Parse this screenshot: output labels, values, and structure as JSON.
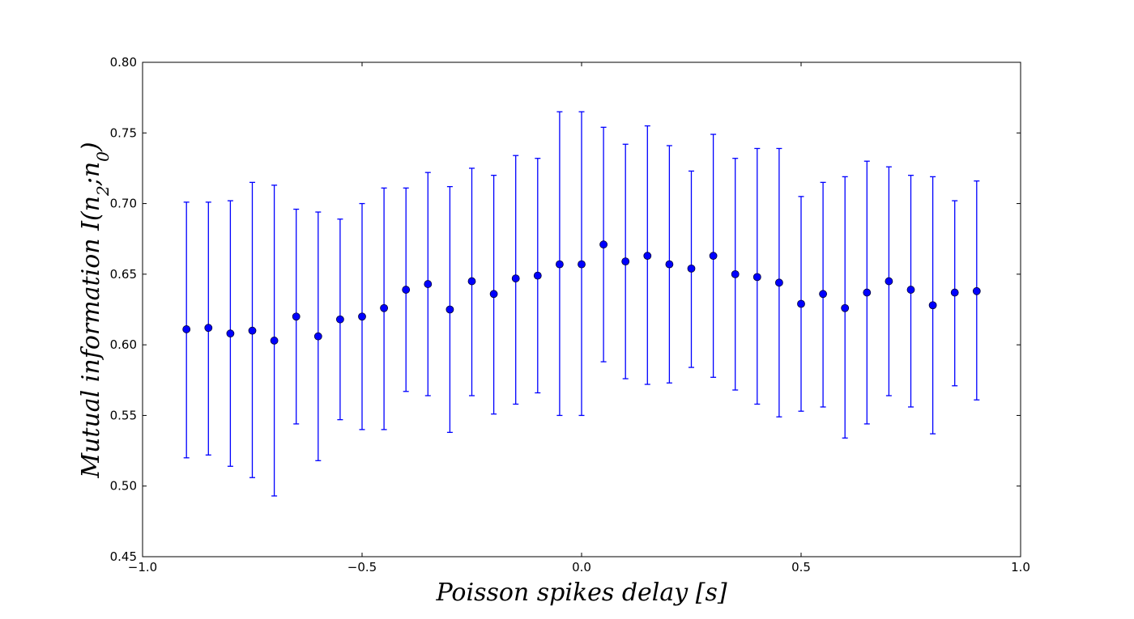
{
  "chart_data": {
    "type": "scatter",
    "error_bars": true,
    "xlabel": "Poisson spikes delay [s]",
    "ylabel_parts": {
      "prefix": "Mutual information I(n",
      "sub1": "2",
      "middle": ";n",
      "sub2": "0",
      "suffix": ")"
    },
    "xlim": [
      -1.0,
      1.0
    ],
    "ylim": [
      0.45,
      0.8
    ],
    "xticks": [
      -1.0,
      -0.5,
      0.0,
      0.5,
      1.0
    ],
    "xtick_labels": [
      "−1.0",
      "−0.5",
      "0.0",
      "0.5",
      "1.0"
    ],
    "yticks": [
      0.45,
      0.5,
      0.55,
      0.6,
      0.65,
      0.7,
      0.75,
      0.8
    ],
    "ytick_labels": [
      "0.45",
      "0.50",
      "0.55",
      "0.60",
      "0.65",
      "0.70",
      "0.75",
      "0.80"
    ],
    "grid": false,
    "color": "#0000ff",
    "series": [
      {
        "x": [
          -0.9,
          -0.85,
          -0.8,
          -0.75,
          -0.7,
          -0.65,
          -0.6,
          -0.55,
          -0.5,
          -0.45,
          -0.4,
          -0.35,
          -0.3,
          -0.25,
          -0.2,
          -0.15,
          -0.1,
          -0.05,
          0.0,
          0.05,
          0.1,
          0.15,
          0.2,
          0.25,
          0.3,
          0.35,
          0.4,
          0.45,
          0.5,
          0.55,
          0.6,
          0.65,
          0.7,
          0.75,
          0.8,
          0.85,
          0.9
        ],
        "y": [
          0.611,
          0.612,
          0.608,
          0.61,
          0.603,
          0.62,
          0.606,
          0.618,
          0.62,
          0.626,
          0.639,
          0.643,
          0.625,
          0.645,
          0.636,
          0.647,
          0.649,
          0.657,
          0.657,
          0.671,
          0.659,
          0.663,
          0.657,
          0.654,
          0.663,
          0.65,
          0.648,
          0.644,
          0.629,
          0.636,
          0.626,
          0.637,
          0.645,
          0.639,
          0.628,
          0.637,
          0.638
        ],
        "yerr_low": [
          0.52,
          0.522,
          0.514,
          0.506,
          0.493,
          0.544,
          0.518,
          0.547,
          0.54,
          0.54,
          0.567,
          0.564,
          0.538,
          0.564,
          0.551,
          0.558,
          0.566,
          0.55,
          0.55,
          0.588,
          0.576,
          0.572,
          0.573,
          0.584,
          0.577,
          0.568,
          0.558,
          0.549,
          0.553,
          0.556,
          0.534,
          0.544,
          0.564,
          0.556,
          0.537,
          0.571,
          0.561
        ],
        "yerr_high": [
          0.701,
          0.701,
          0.702,
          0.715,
          0.713,
          0.696,
          0.694,
          0.689,
          0.7,
          0.711,
          0.711,
          0.722,
          0.712,
          0.725,
          0.72,
          0.734,
          0.732,
          0.765,
          0.765,
          0.754,
          0.742,
          0.755,
          0.741,
          0.723,
          0.749,
          0.732,
          0.739,
          0.739,
          0.705,
          0.715,
          0.719,
          0.73,
          0.726,
          0.72,
          0.719,
          0.702,
          0.716
        ]
      }
    ]
  }
}
